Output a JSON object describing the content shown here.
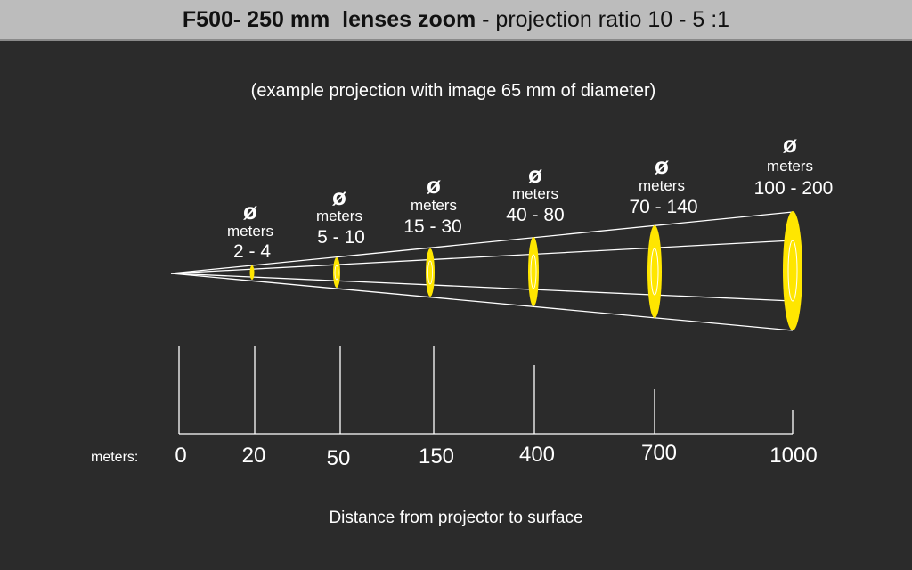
{
  "header": {
    "title_bold": "F500- 250 mm  lenses zoom",
    "title_rest": " - projection ratio 10 - 5 :1"
  },
  "subtitle": "(example projection with image 65 mm of diameter)",
  "diameter_symbol": "ø",
  "stations": [
    {
      "distance": "20",
      "unit_label": "meters",
      "range": "2 - 4"
    },
    {
      "distance": "50",
      "unit_label": "meters",
      "range": "5 - 10"
    },
    {
      "distance": "150",
      "unit_label": "meters",
      "range": "15 - 30"
    },
    {
      "distance": "400",
      "unit_label": "meters",
      "range": "40 - 80"
    },
    {
      "distance": "700",
      "unit_label": "meters",
      "range": "70 - 140"
    },
    {
      "distance": "1000",
      "unit_label": "meters",
      "range": "100 - 200"
    }
  ],
  "axis": {
    "unit_label": "meters:",
    "origin_label": "0",
    "title": "Distance from projector to surface"
  },
  "colors": {
    "background": "#2b2b2b",
    "header_bg": "#bcbcbc",
    "ellipse_fill": "#ffe600",
    "line": "#ffffff"
  }
}
